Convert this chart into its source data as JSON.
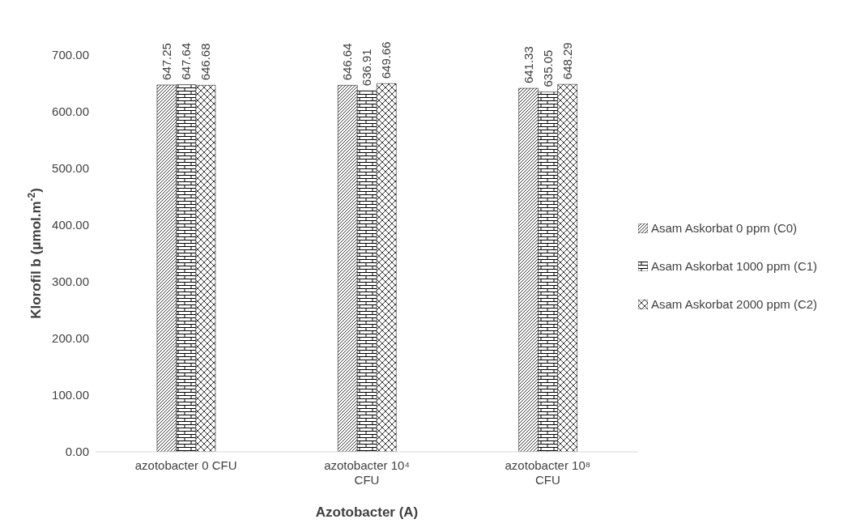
{
  "chart_data": {
    "type": "bar",
    "xlabel": "Azotobacter (A)",
    "ylabel": "Klorofil b (μmol.m$^{-2}$)",
    "categories": [
      "azotobacter 0 CFU",
      "azotobacter 10⁴ CFU",
      "azotobacter 10⁸ CFU"
    ],
    "series": [
      {
        "name": "Asam Askorbat 0 ppm (C0)",
        "color": "#000000",
        "values": [
          647.25,
          646.64,
          641.33
        ]
      },
      {
        "name": "Asam Askorbat 1000 ppm (C1)",
        "color": "#000000",
        "values": [
          647.64,
          636.91,
          635.05
        ]
      },
      {
        "name": "Asam Askorbat 2000 ppm (C2)",
        "color": "#000000",
        "values": [
          646.68,
          649.66,
          648.29
        ]
      }
    ],
    "ylim": [
      0,
      700
    ],
    "yticks": [
      {
        "value": 0,
        "label": "0.00"
      },
      {
        "value": 100,
        "label": "100.00"
      },
      {
        "value": 200,
        "label": "200.00"
      },
      {
        "value": 300,
        "label": "300.00"
      },
      {
        "value": 400,
        "label": "400.00"
      },
      {
        "value": 500,
        "label": "500.00"
      },
      {
        "value": 600,
        "label": "600.00"
      },
      {
        "value": 700,
        "label": "700.00"
      }
    ],
    "data_labels": true,
    "legend": "right",
    "grid": false
  }
}
